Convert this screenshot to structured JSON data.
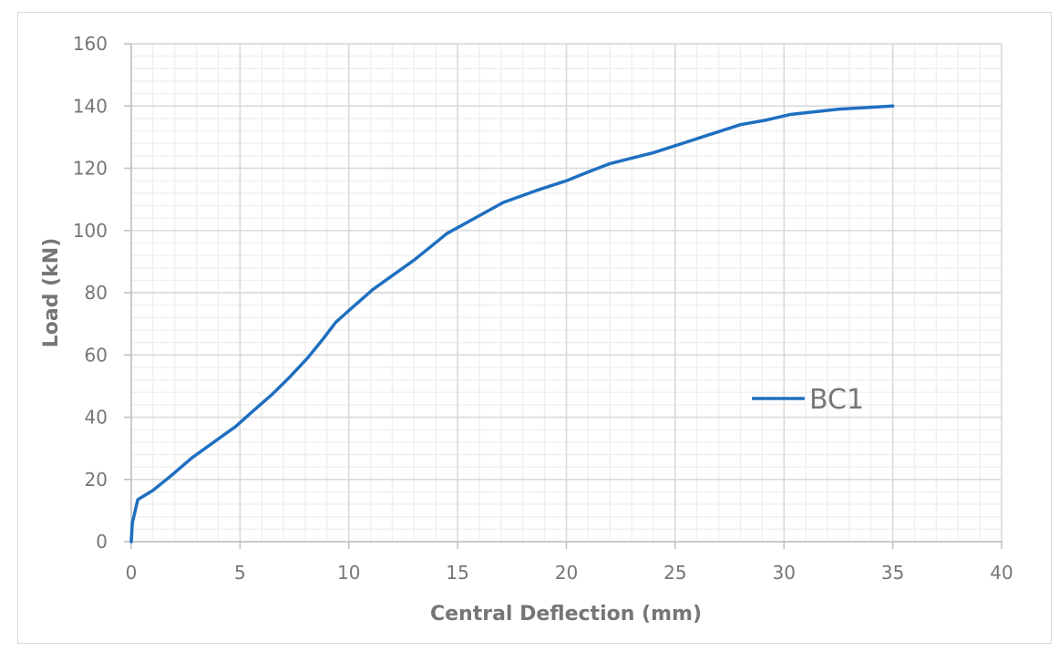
{
  "chart_data": {
    "type": "line",
    "title": "",
    "xlabel": "Central Deflection (mm)",
    "ylabel": "Load (kN)",
    "xlim": [
      0,
      40
    ],
    "ylim": [
      0,
      160
    ],
    "x_ticks": [
      0,
      5,
      10,
      15,
      20,
      25,
      30,
      35,
      40
    ],
    "y_ticks": [
      0,
      20,
      40,
      60,
      80,
      100,
      120,
      140,
      160
    ],
    "grid": {
      "major": true,
      "minor": true,
      "x_minor_step": 1,
      "y_minor_step": 4
    },
    "legend": {
      "position": "inside-right",
      "entries": [
        "BC1"
      ]
    },
    "series": [
      {
        "name": "BC1",
        "color": "#1f6fc0",
        "x": [
          0,
          0.05,
          0.3,
          1.0,
          1.8,
          2.8,
          3.8,
          4.8,
          5.6,
          6.5,
          7.3,
          8.1,
          8.8,
          9.4,
          10.2,
          11.1,
          12.0,
          13.0,
          13.8,
          14.5,
          15.8,
          17.1,
          18.6,
          20.0,
          21.0,
          22.0,
          24.0,
          26.0,
          28.0,
          29.2,
          30.3,
          32.5,
          35.0
        ],
        "y": [
          0,
          6,
          13.5,
          16.5,
          21,
          27,
          32,
          37,
          42,
          47.5,
          53,
          59,
          65,
          70.5,
          75.5,
          81,
          85.5,
          90.5,
          95,
          99,
          104,
          109,
          112.8,
          116,
          118.8,
          121.5,
          125,
          129.5,
          134,
          135.5,
          137.3,
          139,
          140
        ]
      }
    ]
  },
  "axes": {
    "x_title": "Central Deflection (mm)",
    "y_title": "Load (kN)",
    "x_tick_labels": [
      "0",
      "5",
      "10",
      "15",
      "20",
      "25",
      "30",
      "35",
      "40"
    ],
    "y_tick_labels": [
      "0",
      "20",
      "40",
      "60",
      "80",
      "100",
      "120",
      "140",
      "160"
    ]
  },
  "legend": {
    "label": "BC1",
    "color": "#1f6fc0"
  },
  "colors": {
    "major_grid": "#d9d9d9",
    "minor_grid": "#f0f0f0",
    "text": "#767676",
    "series": "#1f6fc0"
  }
}
